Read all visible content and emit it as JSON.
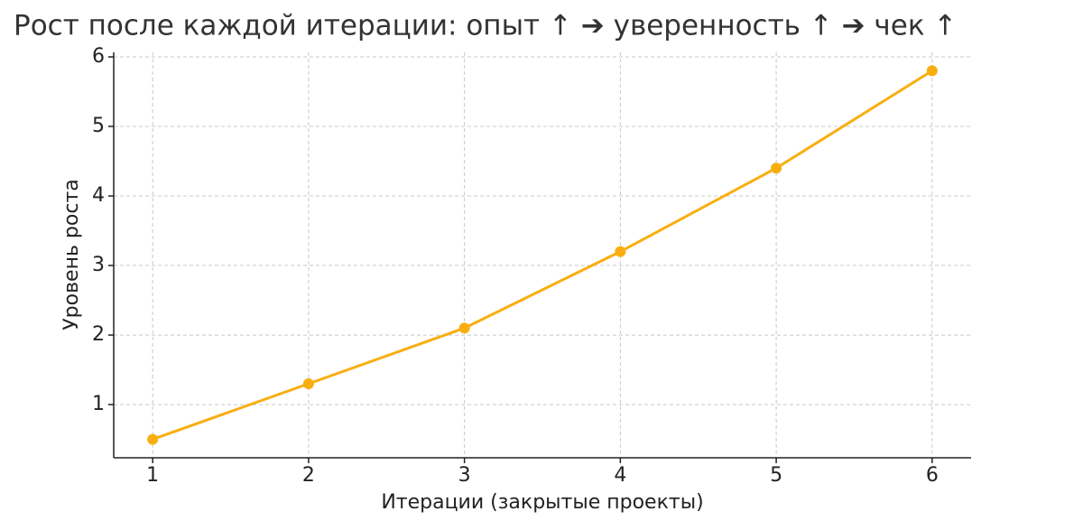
{
  "chart_data": {
    "type": "line",
    "title": "Рост после каждой итерации: опыт ↑  ➔  уверенность ↑  ➔  чек ↑",
    "x_label": "Итерации (закрытые проекты)",
    "y_label": "Уровень роста",
    "x": [
      1,
      2,
      3,
      4,
      5,
      6
    ],
    "series": [
      {
        "name": "Уровень роста",
        "color": "#f9ae10",
        "values": [
          0.5,
          1.3,
          2.1,
          3.2,
          4.4,
          5.8
        ]
      }
    ],
    "xlim": [
      0.75,
      6.25
    ],
    "xticks": [
      1,
      2,
      3,
      4,
      5,
      6
    ],
    "ylim": [
      0.235,
      6.065
    ],
    "yticks": [
      1,
      2,
      3,
      4,
      5,
      6
    ],
    "grid": true
  }
}
